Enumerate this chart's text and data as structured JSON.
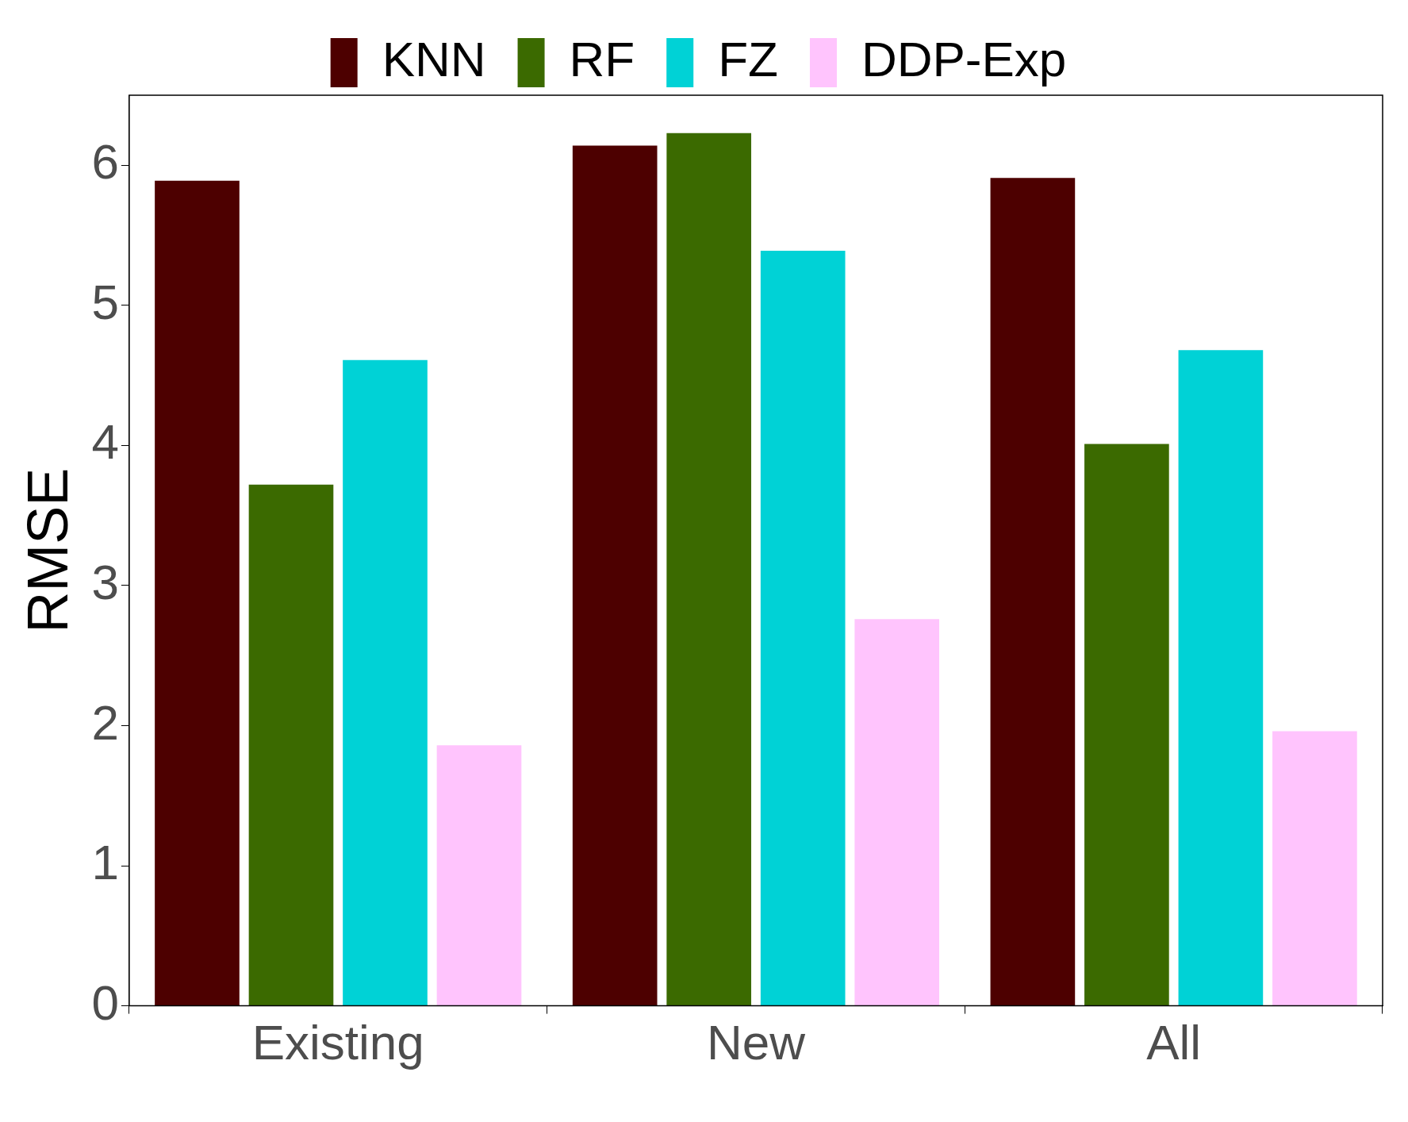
{
  "chart_data": {
    "type": "bar",
    "ylabel": "RMSE",
    "categories": [
      "Existing",
      "New",
      "All"
    ],
    "series": [
      {
        "name": "KNN",
        "color": "#4d0000",
        "values": [
          5.89,
          6.14,
          5.91
        ]
      },
      {
        "name": "RF",
        "color": "#3b6a00",
        "values": [
          3.72,
          6.23,
          4.01
        ]
      },
      {
        "name": "FZ",
        "color": "#00d2d6",
        "values": [
          4.61,
          5.39,
          4.68
        ]
      },
      {
        "name": "DDP-Exp",
        "color": "#ffc4fd",
        "values": [
          1.86,
          2.76,
          1.96
        ]
      }
    ],
    "ylim": [
      0,
      6.5
    ],
    "yticks": [
      0,
      1,
      2,
      3,
      4,
      5,
      6
    ],
    "grid": false,
    "legend": "top"
  }
}
